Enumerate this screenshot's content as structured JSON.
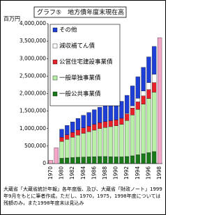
{
  "chart_data": {
    "type": "bar",
    "stacked": true,
    "title": "グラフ⑤　地方債年度末現在高",
    "y_label": "百万円",
    "note": "大蔵省「大蔵省統計年報」各年度版、及び、大蔵省「財政ノート」1999年9月をもとに筆者作成。ただし、1970，1975，1998年度については残額のみ，また1998年度末は見込み",
    "categories": [
      "1970",
      null,
      "1980",
      null,
      "1982",
      null,
      "1984",
      null,
      "1986",
      null,
      "1988",
      null,
      "1990",
      null,
      "1992",
      null,
      "1994",
      null,
      "1996",
      null,
      "1998"
    ],
    "series": [
      {
        "name": "一般公共事業債",
        "color": "#1a7a1a",
        "values": [
          null,
          null,
          150000,
          160000,
          170000,
          180000,
          185000,
          190000,
          195000,
          200000,
          200000,
          195000,
          190000,
          190000,
          200000,
          220000,
          250000,
          280000,
          310000,
          340000,
          null
        ]
      },
      {
        "name": "一般単独事業債",
        "color": "#b8f0a8",
        "values": [
          null,
          null,
          480000,
          530000,
          580000,
          630000,
          680000,
          720000,
          760000,
          800000,
          830000,
          860000,
          890000,
          930000,
          1030000,
          1170000,
          1300000,
          1420000,
          1550000,
          1700000,
          null
        ]
      },
      {
        "name": "公営住宅建設事業債",
        "color": "#e8202a",
        "values": [
          null,
          null,
          120000,
          130000,
          140000,
          150000,
          155000,
          160000,
          165000,
          170000,
          170000,
          170000,
          170000,
          175000,
          185000,
          200000,
          215000,
          235000,
          255000,
          275000,
          null
        ]
      },
      {
        "name": "減収補てん債",
        "color": "#ffffff",
        "values": [
          null,
          null,
          0,
          0,
          0,
          0,
          0,
          0,
          0,
          0,
          0,
          0,
          0,
          0,
          20000,
          60000,
          100000,
          140000,
          200000,
          240000,
          null
        ]
      },
      {
        "name": "その他",
        "color": "#1e3ed8",
        "values": [
          null,
          null,
          230000,
          270000,
          300000,
          330000,
          360000,
          390000,
          420000,
          440000,
          460000,
          465000,
          470000,
          485000,
          515000,
          570000,
          615000,
          675000,
          735000,
          795000,
          null
        ]
      },
      {
        "color": "#f4a6c8",
        "values": [
          90000,
          450000,
          null,
          null,
          null,
          null,
          null,
          null,
          null,
          null,
          null,
          null,
          null,
          null,
          null,
          null,
          null,
          null,
          null,
          null,
          3600000
        ]
      }
    ],
    "ylim": [
      0,
      4000000
    ],
    "yticks": [
      0,
      {
        "value": 500000,
        "label": "500,000"
      },
      {
        "value": 1000000,
        "label": "1,000,000"
      },
      {
        "value": 1500000,
        "label": "1,500,000"
      },
      {
        "value": 2000000,
        "label": "2,000,000"
      },
      {
        "value": 2500000,
        "label": "2,500,000"
      },
      {
        "value": 3000000,
        "label": "3,000,000"
      },
      {
        "value": 3500000,
        "label": "3,500,000"
      },
      {
        "value": 4000000,
        "label": "4,000,000"
      }
    ],
    "grid": false
  }
}
